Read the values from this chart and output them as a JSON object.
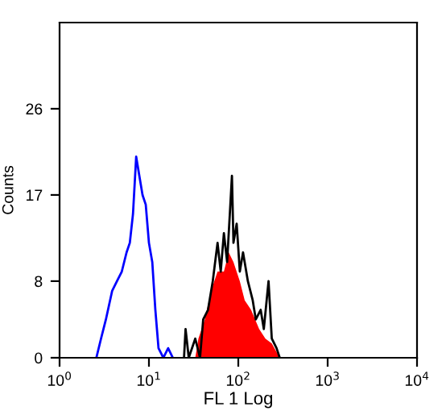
{
  "chart_data": {
    "type": "line",
    "xlabel": "FL 1 Log",
    "ylabel": "Counts",
    "log": "x",
    "xlim": [
      1,
      10000
    ],
    "ylim": [
      0,
      35
    ],
    "xticks": [
      {
        "value": 1,
        "label": "10$^{0}$"
      },
      {
        "value": 10,
        "label": "10$^{1}$"
      },
      {
        "value": 100,
        "label": "10$^{2}$"
      },
      {
        "value": 1000,
        "label": "10$^{3}$"
      },
      {
        "value": 10000,
        "label": "10$^{4}$"
      }
    ],
    "yticks": [
      0,
      8,
      17,
      26
    ],
    "grid": false,
    "series": [
      {
        "color": "#0000ff",
        "x": [
          2.58,
          2.91,
          3.3,
          3.88,
          4.39,
          4.97,
          5.62,
          6.11,
          6.63,
          7.2,
          7.81,
          8.48,
          9.21,
          10,
          10.9,
          11.8,
          12.8,
          14.5,
          16.4,
          18.5
        ],
        "values": [
          0,
          2,
          4,
          7,
          8,
          9,
          11,
          12,
          15,
          21,
          19,
          17,
          16,
          12,
          10,
          5,
          1,
          0,
          1,
          0
        ]
      },
      {
        "color": "#ff0000",
        "type": "area",
        "x": [
          33.0,
          35.8,
          42.2,
          49.7,
          58.6,
          69.0,
          78.2,
          88.3,
          104,
          118,
          139,
          171,
          201,
          237,
          291
        ],
        "values": [
          0,
          2,
          4,
          7,
          9,
          9,
          11,
          10,
          8,
          6,
          5,
          3,
          2,
          1.5,
          0
        ]
      },
      {
        "color": "#000000",
        "x": [
          24.7,
          25.7,
          27.9,
          33.0,
          37.3,
          40.5,
          45.8,
          51.8,
          58.6,
          63.6,
          69.0,
          75.0,
          81.5,
          84.9,
          88.3,
          95.9,
          104,
          113,
          128,
          145,
          157,
          178,
          193,
          218,
          237,
          268,
          291
        ],
        "values": [
          0,
          3,
          0,
          2,
          0,
          4,
          5,
          8,
          12,
          9,
          13,
          10,
          16,
          19,
          12,
          14,
          9,
          11,
          8,
          6,
          4,
          5,
          3,
          8,
          2,
          1,
          0
        ]
      }
    ]
  }
}
